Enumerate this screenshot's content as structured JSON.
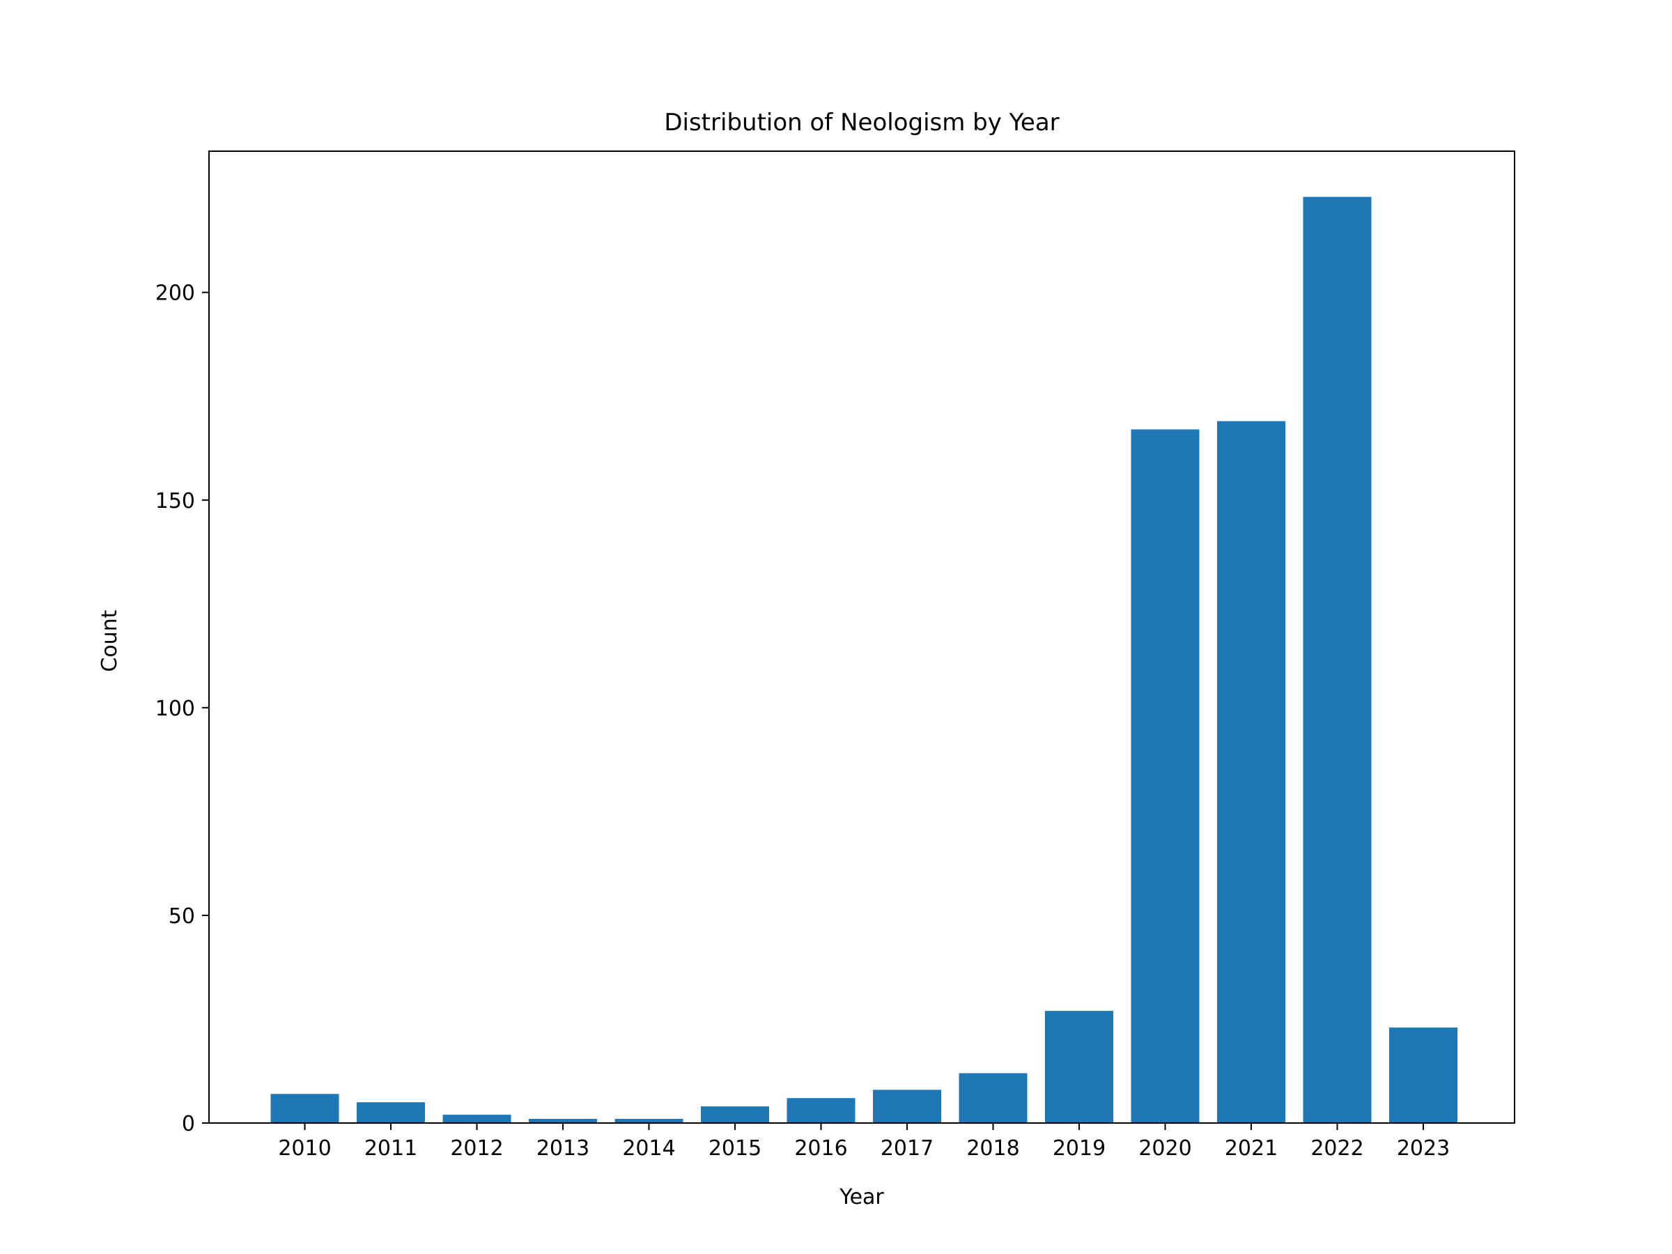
{
  "chart_data": {
    "type": "bar",
    "title": "Distribution of Neologism by Year",
    "xlabel": "Year",
    "ylabel": "Count",
    "categories": [
      "2010",
      "2011",
      "2012",
      "2013",
      "2014",
      "2015",
      "2016",
      "2017",
      "2018",
      "2019",
      "2020",
      "2021",
      "2022",
      "2023"
    ],
    "values": [
      7,
      5,
      2,
      1,
      1,
      4,
      6,
      8,
      12,
      27,
      167,
      169,
      223,
      23
    ],
    "ylim": [
      0,
      234
    ],
    "yticks": [
      0,
      50,
      100,
      150,
      200
    ],
    "grid": false,
    "legend": "none",
    "colors": {
      "bar": "#1f77b4",
      "axis": "#000000",
      "background": "#ffffff"
    }
  }
}
